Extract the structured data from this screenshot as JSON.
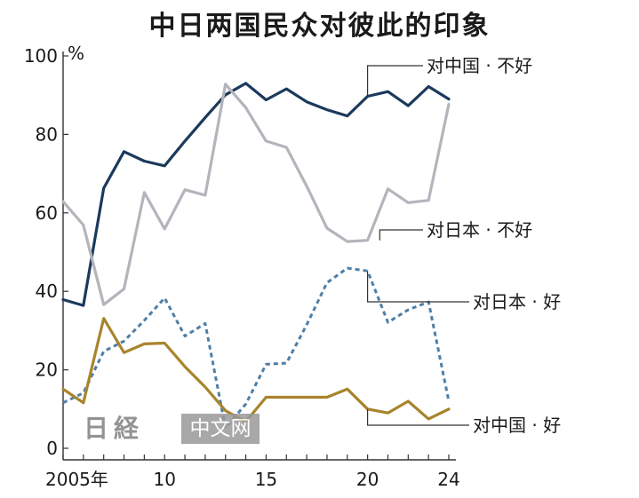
{
  "chart_data": {
    "type": "line",
    "title": "中日两国民众对彼此的印象",
    "y_unit_label": "%",
    "ylim": [
      0,
      100
    ],
    "y_ticks": [
      "0",
      "20",
      "40",
      "60",
      "80",
      "100"
    ],
    "x_ticks": [
      {
        "year": 2005,
        "label": "2005年"
      },
      {
        "year": 2010,
        "label": "10"
      },
      {
        "year": 2015,
        "label": "15"
      },
      {
        "year": 2020,
        "label": "20"
      },
      {
        "year": 2024,
        "label": "24"
      }
    ],
    "x": [
      2005,
      2006,
      2007,
      2008,
      2009,
      2010,
      2011,
      2012,
      2013,
      2014,
      2015,
      2016,
      2017,
      2018,
      2019,
      2020,
      2021,
      2022,
      2023,
      2024
    ],
    "series": [
      {
        "name": "对中国 · 不好",
        "color": "#1b3a5c",
        "style": "solid",
        "values": [
          37.9,
          36.4,
          66.3,
          75.6,
          73.2,
          72.0,
          78.3,
          84.3,
          90.1,
          93.0,
          88.8,
          91.6,
          88.3,
          86.3,
          84.7,
          89.7,
          90.9,
          87.3,
          92.2,
          89.0
        ]
      },
      {
        "name": "对日本 · 不好",
        "color": "#b4b4bc",
        "style": "solid",
        "values": [
          62.9,
          56.9,
          36.6,
          40.6,
          65.2,
          55.9,
          65.9,
          64.5,
          92.8,
          86.8,
          78.3,
          76.7,
          66.8,
          56.1,
          52.7,
          53.0,
          66.1,
          62.6,
          63.2,
          87.7
        ]
      },
      {
        "name": "对日本 · 好",
        "color": "#4f7fa6",
        "style": "dashed",
        "values": [
          11.6,
          14.1,
          24.7,
          27.3,
          32.6,
          38.3,
          28.6,
          31.8,
          5.2,
          11.3,
          21.4,
          21.7,
          31.5,
          42.2,
          45.9,
          45.2,
          32.1,
          35.3,
          37.3,
          12.0
        ]
      },
      {
        "name": "对中国 · 好",
        "color": "#a8842c",
        "style": "solid",
        "values": [
          15.1,
          11.6,
          33.1,
          24.4,
          26.6,
          26.8,
          20.8,
          15.6,
          9.6,
          6.8,
          13.0,
          13.0,
          13.0,
          13.0,
          15.1,
          10.0,
          9.0,
          12.0,
          7.5,
          10.0
        ]
      }
    ],
    "grid": false
  },
  "watermark": {
    "text": "中文网",
    "logo_text": "日経"
  }
}
